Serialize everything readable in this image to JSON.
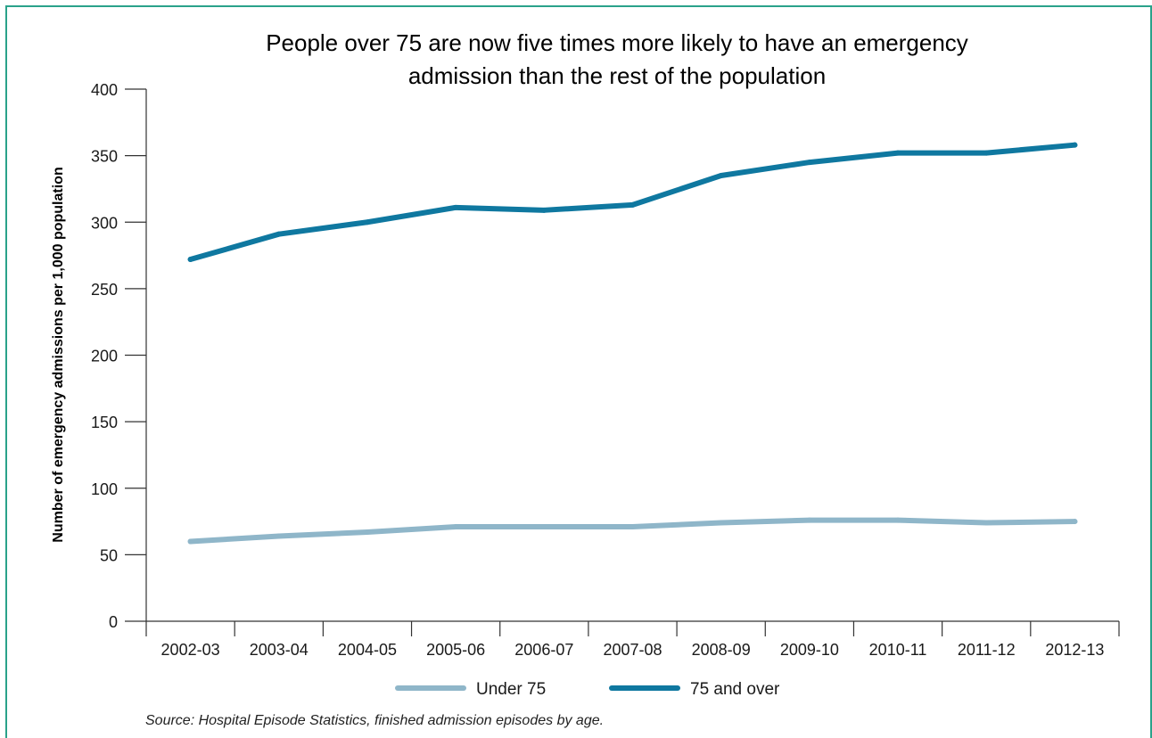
{
  "chart_data": {
    "type": "line",
    "title_lines": [
      "People over 75 are now five times more likely to have an emergency",
      "admission than the rest of the population"
    ],
    "ylabel": "Number of emergency admissions per 1,000 population",
    "xlabel": "",
    "categories": [
      "2002-03",
      "2003-04",
      "2004-05",
      "2005-06",
      "2006-07",
      "2007-08",
      "2008-09",
      "2009-10",
      "2010-11",
      "2011-12",
      "2012-13"
    ],
    "ylim": [
      0,
      400
    ],
    "yticks": [
      0,
      50,
      100,
      150,
      200,
      250,
      300,
      350,
      400
    ],
    "series": [
      {
        "name": "Under 75",
        "color": "#8fb6c9",
        "values": [
          60,
          64,
          67,
          71,
          71,
          71,
          74,
          76,
          76,
          74,
          75
        ]
      },
      {
        "name": "75 and over",
        "color": "#0f78a0",
        "values": [
          272,
          291,
          300,
          311,
          309,
          313,
          335,
          345,
          352,
          352,
          358
        ]
      }
    ],
    "legend_position": "bottom-center",
    "grid": false
  },
  "source": "Source: Hospital Episode Statistics, finished admission episodes by age."
}
